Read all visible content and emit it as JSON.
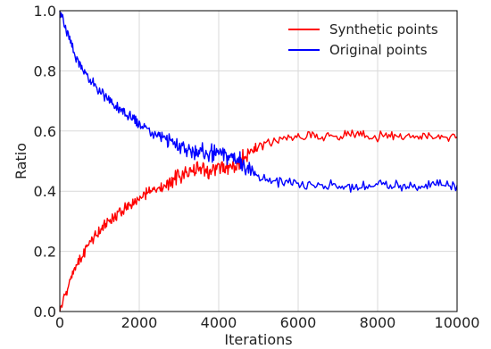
{
  "chart_data": {
    "type": "line",
    "title": "",
    "xlabel": "Iterations",
    "ylabel": "Ratio",
    "xlim": [
      0,
      10000
    ],
    "ylim": [
      0.0,
      1.0
    ],
    "xticks": [
      "0",
      "2000",
      "4000",
      "6000",
      "8000",
      "10000"
    ],
    "yticks": [
      "0.0",
      "0.2",
      "0.4",
      "0.6",
      "0.8",
      "1.0"
    ],
    "grid": true,
    "legend_position": "top-right",
    "x": [
      0,
      250,
      500,
      750,
      1000,
      1250,
      1500,
      1750,
      2000,
      2250,
      2500,
      2750,
      3000,
      3250,
      3500,
      3750,
      4000,
      4250,
      4500,
      4750,
      5000,
      5500,
      6000,
      6500,
      7000,
      7500,
      8000,
      8500,
      9000,
      9500,
      10000
    ],
    "series": [
      {
        "name": "Synthetic points",
        "color": "#ff0000",
        "values": [
          0.0,
          0.1,
          0.17,
          0.23,
          0.27,
          0.3,
          0.33,
          0.35,
          0.37,
          0.4,
          0.41,
          0.43,
          0.45,
          0.46,
          0.47,
          0.47,
          0.48,
          0.48,
          0.49,
          0.53,
          0.55,
          0.57,
          0.58,
          0.58,
          0.58,
          0.59,
          0.58,
          0.58,
          0.58,
          0.58,
          0.58
        ]
      },
      {
        "name": "Original points",
        "color": "#0000ff",
        "values": [
          1.0,
          0.9,
          0.82,
          0.77,
          0.73,
          0.7,
          0.67,
          0.65,
          0.62,
          0.6,
          0.59,
          0.57,
          0.55,
          0.54,
          0.53,
          0.53,
          0.52,
          0.52,
          0.51,
          0.47,
          0.45,
          0.43,
          0.42,
          0.42,
          0.42,
          0.41,
          0.42,
          0.42,
          0.42,
          0.42,
          0.42
        ]
      }
    ]
  }
}
